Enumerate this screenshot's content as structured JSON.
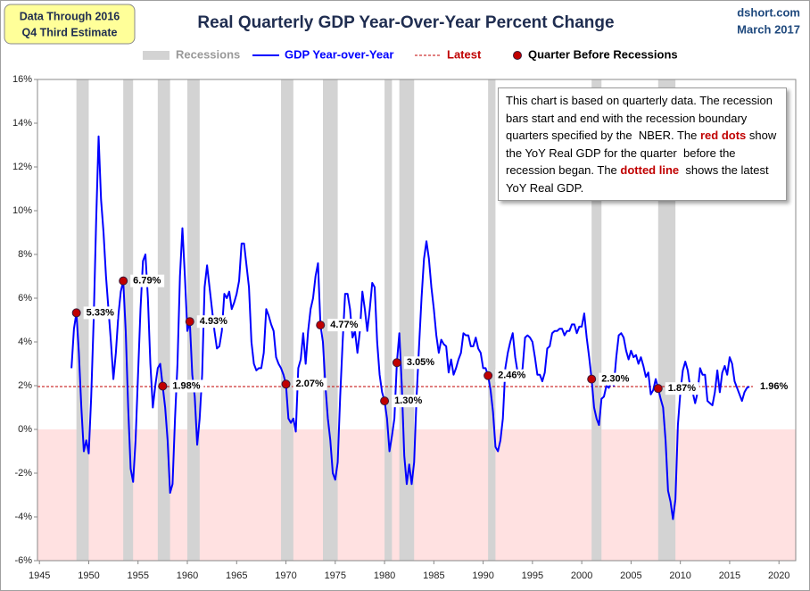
{
  "chart_data": {
    "type": "line",
    "title": "Real Quarterly GDP Year-Over-Year Percent Change",
    "badge": [
      "Data Through 2016",
      "Q4 Third Estimate"
    ],
    "source": [
      "dshort.com",
      "March 2017"
    ],
    "note": {
      "parts": [
        "This chart is based on quarterly data. The recession bars start and end with the recession boundary quarters specified by the  NBER. The ",
        "red dots",
        " show the YoY Real GDP for the quarter  before the recession began. The ",
        "dotted line",
        "  shows the latest YoY Real GDP."
      ],
      "highlight_color": "#c00000"
    },
    "xlim": [
      1944.8,
      2021.7
    ],
    "xticks": [
      1945,
      1950,
      1955,
      1960,
      1965,
      1970,
      1975,
      1980,
      1985,
      1990,
      1995,
      2000,
      2005,
      2010,
      2015,
      2020
    ],
    "ylim": [
      -6,
      16
    ],
    "yticks": [
      {
        "value": -6,
        "label": "-6%"
      },
      {
        "value": -4,
        "label": "-4%"
      },
      {
        "value": -2,
        "label": "-2%"
      },
      {
        "value": 0,
        "label": "0%"
      },
      {
        "value": 2,
        "label": "2%"
      },
      {
        "value": 4,
        "label": "4%"
      },
      {
        "value": 6,
        "label": "6%"
      },
      {
        "value": 8,
        "label": "8%"
      },
      {
        "value": 10,
        "label": "10%"
      },
      {
        "value": 12,
        "label": "12%"
      },
      {
        "value": 14,
        "label": "14%"
      },
      {
        "value": 16,
        "label": "16%"
      }
    ],
    "negative_fill": "#ffe1e1",
    "recessions": {
      "name": "Recessions",
      "color": "#d3d3d3",
      "periods": [
        [
          1948.75,
          1950.0
        ],
        [
          1953.5,
          1954.5
        ],
        [
          1957.0,
          1958.25
        ],
        [
          1960.0,
          1961.25
        ],
        [
          1969.5,
          1970.75
        ],
        [
          1973.75,
          1975.25
        ],
        [
          1980.0,
          1980.75
        ],
        [
          1981.5,
          1983.0
        ],
        [
          1990.5,
          1991.25
        ],
        [
          2001.0,
          2002.0
        ],
        [
          2007.75,
          2009.5
        ]
      ]
    },
    "series": [
      {
        "name": "GDP Year-over-Year",
        "color": "#0000ff",
        "x": [
          1948.25,
          1948.5,
          1948.75,
          1949,
          1949.25,
          1949.5,
          1949.75,
          1950,
          1950.25,
          1950.5,
          1950.75,
          1951,
          1951.25,
          1951.5,
          1951.75,
          1952,
          1952.25,
          1952.5,
          1952.75,
          1953,
          1953.25,
          1953.5,
          1953.75,
          1954,
          1954.25,
          1954.5,
          1954.75,
          1955,
          1955.25,
          1955.5,
          1955.75,
          1956,
          1956.25,
          1956.5,
          1956.75,
          1957,
          1957.25,
          1957.5,
          1957.75,
          1958,
          1958.25,
          1958.5,
          1958.75,
          1959,
          1959.25,
          1959.5,
          1959.75,
          1960,
          1960.25,
          1960.5,
          1960.75,
          1961,
          1961.25,
          1961.5,
          1961.75,
          1962,
          1962.25,
          1962.5,
          1962.75,
          1963,
          1963.25,
          1963.5,
          1963.75,
          1964,
          1964.25,
          1964.5,
          1964.75,
          1965,
          1965.25,
          1965.5,
          1965.75,
          1966,
          1966.25,
          1966.5,
          1966.75,
          1967,
          1967.25,
          1967.5,
          1967.75,
          1968,
          1968.25,
          1968.5,
          1968.75,
          1969,
          1969.25,
          1969.5,
          1969.75,
          1970,
          1970.25,
          1970.5,
          1970.75,
          1971,
          1971.25,
          1971.5,
          1971.75,
          1972,
          1972.25,
          1972.5,
          1972.75,
          1973,
          1973.25,
          1973.5,
          1973.75,
          1974,
          1974.25,
          1974.5,
          1974.75,
          1975,
          1975.25,
          1975.5,
          1975.75,
          1976,
          1976.25,
          1976.5,
          1976.75,
          1977,
          1977.25,
          1977.5,
          1977.75,
          1978,
          1978.25,
          1978.5,
          1978.75,
          1979,
          1979.25,
          1979.5,
          1979.75,
          1980,
          1980.25,
          1980.5,
          1980.75,
          1981,
          1981.25,
          1981.5,
          1981.75,
          1982,
          1982.25,
          1982.5,
          1982.75,
          1983,
          1983.25,
          1983.5,
          1983.75,
          1984,
          1984.25,
          1984.5,
          1984.75,
          1985,
          1985.25,
          1985.5,
          1985.75,
          1986,
          1986.25,
          1986.5,
          1986.75,
          1987,
          1987.25,
          1987.5,
          1987.75,
          1988,
          1988.25,
          1988.5,
          1988.75,
          1989,
          1989.25,
          1989.5,
          1989.75,
          1990,
          1990.25,
          1990.5,
          1990.75,
          1991,
          1991.25,
          1991.5,
          1991.75,
          1992,
          1992.25,
          1992.5,
          1992.75,
          1993,
          1993.25,
          1993.5,
          1993.75,
          1994,
          1994.25,
          1994.5,
          1994.75,
          1995,
          1995.25,
          1995.5,
          1995.75,
          1996,
          1996.25,
          1996.5,
          1996.75,
          1997,
          1997.25,
          1997.5,
          1997.75,
          1998,
          1998.25,
          1998.5,
          1998.75,
          1999,
          1999.25,
          1999.5,
          1999.75,
          2000,
          2000.25,
          2000.5,
          2000.75,
          2001,
          2001.25,
          2001.5,
          2001.75,
          2002,
          2002.25,
          2002.5,
          2002.75,
          2003,
          2003.25,
          2003.5,
          2003.75,
          2004,
          2004.25,
          2004.5,
          2004.75,
          2005,
          2005.25,
          2005.5,
          2005.75,
          2006,
          2006.25,
          2006.5,
          2006.75,
          2007,
          2007.25,
          2007.5,
          2007.75,
          2008,
          2008.25,
          2008.5,
          2008.75,
          2009,
          2009.25,
          2009.5,
          2009.75,
          2010,
          2010.25,
          2010.5,
          2010.75,
          2011,
          2011.25,
          2011.5,
          2011.75,
          2012,
          2012.25,
          2012.5,
          2012.75,
          2013,
          2013.25,
          2013.5,
          2013.75,
          2014,
          2014.25,
          2014.5,
          2014.75,
          2015,
          2015.25,
          2015.5,
          2015.75,
          2016,
          2016.25,
          2016.5,
          2016.75,
          2017
        ],
        "values": [
          2.8,
          4.6,
          5.33,
          3.5,
          1.0,
          -1.0,
          -0.5,
          -1.1,
          1.5,
          5.0,
          9.5,
          13.4,
          10.5,
          9.0,
          7.0,
          5.5,
          4.0,
          2.3,
          3.5,
          5.2,
          6.3,
          6.79,
          4.5,
          1.0,
          -1.8,
          -2.4,
          -0.5,
          2.5,
          5.5,
          7.7,
          8.0,
          6.0,
          3.0,
          1.0,
          2.0,
          2.8,
          3.0,
          1.98,
          1.0,
          -0.5,
          -2.9,
          -2.5,
          0.5,
          3.0,
          7.0,
          9.2,
          7.0,
          4.5,
          4.93,
          2.5,
          1.5,
          -0.7,
          0.5,
          2.5,
          6.5,
          7.5,
          6.5,
          5.5,
          4.5,
          3.7,
          3.8,
          4.5,
          6.2,
          6.0,
          6.3,
          5.5,
          5.8,
          6.2,
          6.8,
          8.5,
          8.5,
          7.5,
          6.5,
          4.0,
          3.0,
          2.7,
          2.8,
          2.8,
          3.5,
          5.5,
          5.2,
          4.8,
          4.5,
          3.3,
          3.0,
          2.8,
          2.5,
          2.07,
          0.5,
          0.3,
          0.5,
          -0.1,
          2.8,
          3.2,
          4.4,
          3.0,
          4.5,
          5.5,
          6.0,
          7.0,
          7.6,
          4.77,
          4.0,
          2.0,
          0.5,
          -0.5,
          -2.0,
          -2.3,
          -1.5,
          1.5,
          4.0,
          6.2,
          6.2,
          5.5,
          4.2,
          4.5,
          3.5,
          4.5,
          6.3,
          5.5,
          4.5,
          5.5,
          6.7,
          6.5,
          4.0,
          2.5,
          1.7,
          1.3,
          0.5,
          -1.0,
          -0.3,
          0.5,
          3.05,
          4.4,
          2.0,
          -1.2,
          -2.5,
          -1.6,
          -2.5,
          -1.5,
          1.5,
          3.8,
          6.0,
          7.8,
          8.6,
          7.8,
          6.5,
          5.5,
          4.3,
          3.5,
          4.1,
          3.9,
          3.8,
          2.6,
          3.2,
          2.5,
          2.8,
          3.2,
          3.5,
          4.4,
          4.3,
          4.3,
          3.8,
          3.8,
          4.2,
          3.7,
          3.5,
          2.8,
          2.8,
          2.46,
          1.8,
          0.8,
          -0.8,
          -1.0,
          -0.5,
          0.5,
          2.8,
          3.5,
          4.0,
          4.4,
          3.3,
          2.6,
          2.3,
          2.8,
          4.2,
          4.3,
          4.2,
          4.0,
          3.3,
          2.5,
          2.5,
          2.2,
          2.6,
          3.7,
          3.8,
          4.4,
          4.5,
          4.5,
          4.6,
          4.6,
          4.3,
          4.5,
          4.5,
          4.8,
          4.8,
          4.4,
          4.7,
          4.7,
          5.3,
          4.2,
          3.3,
          2.3,
          1.0,
          0.5,
          0.2,
          1.4,
          1.5,
          2.0,
          1.9,
          2.2,
          2.0,
          3.3,
          4.3,
          4.4,
          4.2,
          3.6,
          3.2,
          3.6,
          3.3,
          3.4,
          3.0,
          3.3,
          2.9,
          2.4,
          2.6,
          1.6,
          1.8,
          2.3,
          1.87,
          1.4,
          1.0,
          -0.5,
          -2.8,
          -3.3,
          -4.1,
          -3.2,
          0.2,
          1.7,
          2.7,
          3.1,
          2.7,
          1.9,
          1.7,
          1.2,
          1.7,
          2.8,
          2.5,
          2.5,
          1.3,
          1.2,
          1.1,
          1.7,
          2.7,
          1.7,
          2.6,
          2.9,
          2.5,
          3.3,
          3.0,
          2.2,
          1.9,
          1.6,
          1.3,
          1.7,
          1.9,
          1.96
        ]
      },
      {
        "name": "Latest",
        "color": "#c00000",
        "value": 1.96,
        "value_label": "1.96%"
      },
      {
        "name": "Quarter Before Recessions",
        "color": "#c00000",
        "x": [
          1948.75,
          1953.5,
          1957.5,
          1960.25,
          1970.0,
          1973.5,
          1980.0,
          1981.25,
          1990.5,
          2001.0,
          2007.75
        ],
        "values": [
          5.33,
          6.79,
          1.98,
          4.93,
          2.07,
          4.77,
          1.3,
          3.05,
          2.46,
          2.3,
          1.87
        ],
        "value_labels": [
          "5.33%",
          "6.79%",
          "1.98%",
          "4.93%",
          "2.07%",
          "4.77%",
          "1.30%",
          "3.05%",
          "2.46%",
          "2.30%",
          "1.87%"
        ]
      }
    ]
  }
}
